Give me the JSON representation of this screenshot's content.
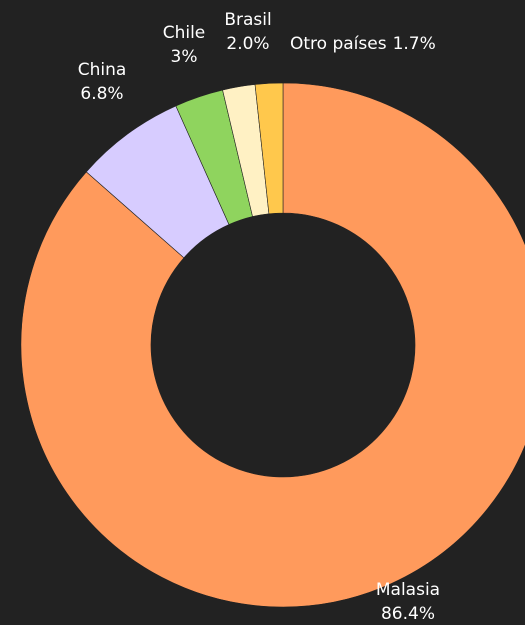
{
  "chart_data": {
    "type": "donut",
    "categories": [
      "Malasia",
      "China",
      "Chile",
      "Brasil",
      "Otro países"
    ],
    "values": [
      86.4,
      6.8,
      3,
      2.0,
      1.7
    ],
    "value_labels": [
      "86.4%",
      "6.8%",
      "3%",
      "2.0%",
      "1.7%"
    ],
    "colors": [
      "#ff9a5c",
      "#d7ccff",
      "#8fd45e",
      "#fff1c4",
      "#ffc84c"
    ]
  }
}
